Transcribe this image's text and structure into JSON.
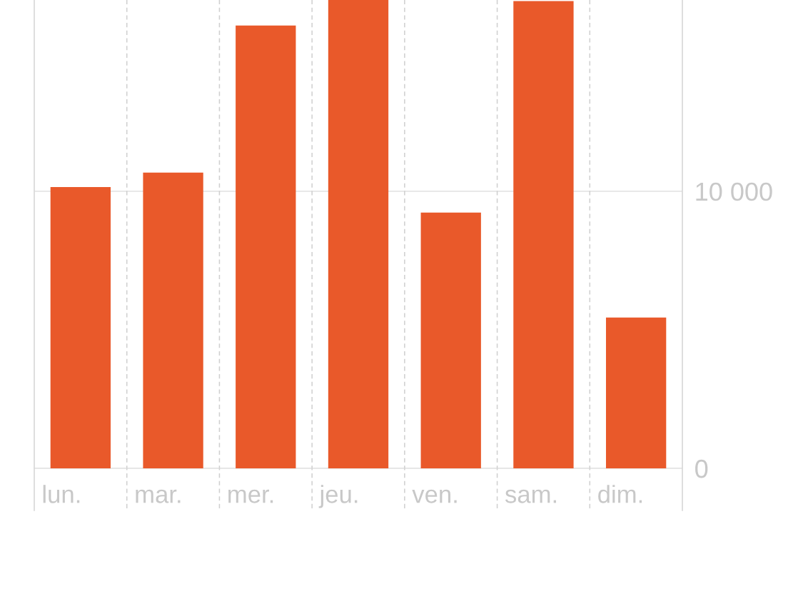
{
  "chart_data": {
    "type": "bar",
    "categories": [
      "lun.",
      "mar.",
      "mer.",
      "jeu.",
      "ven.",
      "sam.",
      "dim."
    ],
    "values": [
      10150,
      10670,
      15980,
      16900,
      9230,
      16860,
      5440
    ],
    "color": "#e9592a",
    "ylim": [
      0,
      16900
    ],
    "yticks": [
      0,
      {
        "value": 10000,
        "label": "10 000"
      }
    ],
    "grid": true
  }
}
